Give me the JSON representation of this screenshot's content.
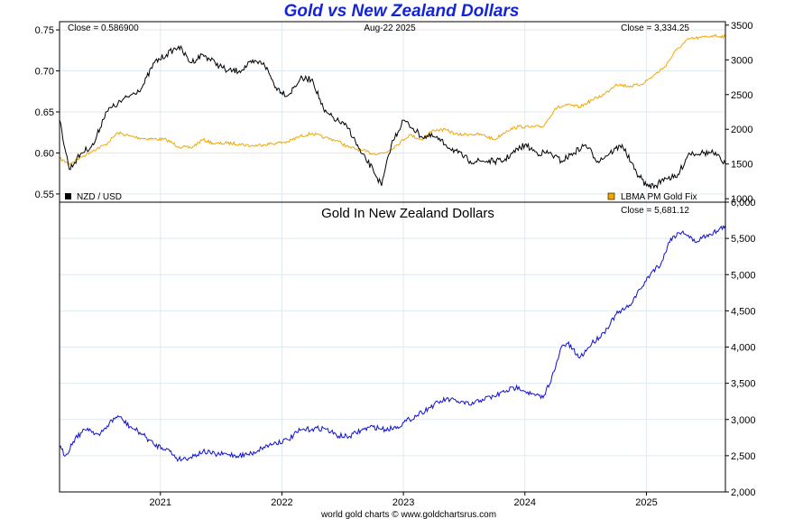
{
  "title": "Gold vs New Zealand Dollars",
  "footer": "world gold charts © www.goldchartsrus.com",
  "colors": {
    "nzd": "#000000",
    "gold_fix": "#f0a800",
    "gold_nzd": "#1010d0",
    "grid": "#dfe9ef"
  },
  "chart_data": [
    {
      "type": "line",
      "panel": "top",
      "date_label": "Aug-22  2025",
      "left_close": "Close = 0.586900",
      "right_close": "Close = 3,334.25",
      "x_ticks": [
        "2021",
        "2022",
        "2023",
        "2024",
        "2025"
      ],
      "x_range": [
        2020.17,
        2025.65
      ],
      "y_left": {
        "ticks": [
          "0.55",
          "0.60",
          "0.65",
          "0.70",
          "0.75"
        ],
        "range": [
          0.54,
          0.76
        ]
      },
      "y_right": {
        "ticks": [
          "1000",
          "1500",
          "2000",
          "2500",
          "3000",
          "3500"
        ],
        "range": [
          950,
          3550
        ]
      },
      "grid": true,
      "series": [
        {
          "name": "NZD / USD",
          "axis": "left",
          "legend": "bottom-left",
          "x": [
            2020.17,
            2020.25,
            2020.35,
            2020.45,
            2020.55,
            2020.65,
            2020.75,
            2020.85,
            2020.95,
            2021.05,
            2021.15,
            2021.25,
            2021.35,
            2021.45,
            2021.55,
            2021.65,
            2021.75,
            2021.85,
            2021.95,
            2022.05,
            2022.15,
            2022.25,
            2022.35,
            2022.45,
            2022.55,
            2022.65,
            2022.75,
            2022.82,
            2022.9,
            2023.0,
            2023.08,
            2023.15,
            2023.25,
            2023.35,
            2023.45,
            2023.55,
            2023.65,
            2023.75,
            2023.82,
            2023.9,
            2024.0,
            2024.1,
            2024.2,
            2024.3,
            2024.4,
            2024.5,
            2024.6,
            2024.7,
            2024.8,
            2024.9,
            2025.0,
            2025.08,
            2025.15,
            2025.25,
            2025.35,
            2025.45,
            2025.55,
            2025.65
          ],
          "y": [
            0.64,
            0.58,
            0.6,
            0.61,
            0.65,
            0.66,
            0.67,
            0.68,
            0.71,
            0.72,
            0.73,
            0.71,
            0.72,
            0.71,
            0.7,
            0.7,
            0.71,
            0.71,
            0.68,
            0.67,
            0.69,
            0.69,
            0.65,
            0.64,
            0.63,
            0.6,
            0.58,
            0.56,
            0.61,
            0.64,
            0.63,
            0.62,
            0.62,
            0.61,
            0.6,
            0.59,
            0.59,
            0.59,
            0.59,
            0.6,
            0.61,
            0.6,
            0.6,
            0.59,
            0.6,
            0.61,
            0.59,
            0.6,
            0.61,
            0.58,
            0.56,
            0.56,
            0.57,
            0.57,
            0.6,
            0.6,
            0.6,
            0.587
          ]
        },
        {
          "name": "LBMA PM Gold Fix",
          "axis": "right",
          "legend": "bottom-right",
          "x": [
            2020.17,
            2020.25,
            2020.35,
            2020.45,
            2020.55,
            2020.65,
            2020.75,
            2020.85,
            2020.95,
            2021.05,
            2021.15,
            2021.25,
            2021.35,
            2021.45,
            2021.55,
            2021.65,
            2021.75,
            2021.85,
            2021.95,
            2022.05,
            2022.15,
            2022.25,
            2022.35,
            2022.45,
            2022.55,
            2022.65,
            2022.75,
            2022.85,
            2022.95,
            2023.05,
            2023.15,
            2023.25,
            2023.35,
            2023.45,
            2023.55,
            2023.65,
            2023.75,
            2023.85,
            2023.95,
            2024.05,
            2024.15,
            2024.25,
            2024.35,
            2024.45,
            2024.55,
            2024.65,
            2024.75,
            2024.85,
            2024.95,
            2025.05,
            2025.15,
            2025.25,
            2025.35,
            2025.45,
            2025.55,
            2025.65
          ],
          "y": [
            1580,
            1500,
            1600,
            1700,
            1780,
            1950,
            1900,
            1870,
            1860,
            1850,
            1750,
            1730,
            1850,
            1790,
            1800,
            1790,
            1760,
            1780,
            1800,
            1820,
            1900,
            1940,
            1880,
            1840,
            1740,
            1700,
            1650,
            1660,
            1780,
            1920,
            1850,
            1990,
            1990,
            1920,
            1930,
            1920,
            1850,
            1980,
            2040,
            2030,
            2040,
            2300,
            2350,
            2320,
            2420,
            2500,
            2650,
            2620,
            2640,
            2760,
            2900,
            3150,
            3300,
            3320,
            3350,
            3334
          ]
        }
      ]
    },
    {
      "type": "line",
      "panel": "bottom",
      "title": "Gold In New Zealand Dollars",
      "right_close": "Close = 5,681.12",
      "x_ticks": [
        "2021",
        "2022",
        "2023",
        "2024",
        "2025"
      ],
      "x_range": [
        2020.17,
        2025.65
      ],
      "y_right": {
        "ticks": [
          "2,000",
          "2,500",
          "3,000",
          "3,500",
          "4,000",
          "4,500",
          "5,000",
          "5,500",
          "6,000"
        ],
        "range": [
          2000,
          6000
        ]
      },
      "grid": true,
      "series": [
        {
          "name": "Gold In New Zealand Dollars",
          "axis": "right",
          "x": [
            2020.17,
            2020.22,
            2020.3,
            2020.4,
            2020.5,
            2020.58,
            2020.65,
            2020.75,
            2020.85,
            2020.95,
            2021.05,
            2021.15,
            2021.25,
            2021.35,
            2021.45,
            2021.55,
            2021.65,
            2021.75,
            2021.85,
            2021.95,
            2022.05,
            2022.15,
            2022.25,
            2022.35,
            2022.45,
            2022.55,
            2022.65,
            2022.75,
            2022.85,
            2022.95,
            2023.05,
            2023.15,
            2023.25,
            2023.35,
            2023.45,
            2023.55,
            2023.65,
            2023.75,
            2023.85,
            2023.95,
            2024.05,
            2024.15,
            2024.25,
            2024.3,
            2024.35,
            2024.45,
            2024.55,
            2024.65,
            2024.75,
            2024.85,
            2024.95,
            2025.05,
            2025.12,
            2025.2,
            2025.3,
            2025.4,
            2025.5,
            2025.58,
            2025.65
          ],
          "y": [
            2620,
            2500,
            2750,
            2880,
            2780,
            2950,
            3050,
            2900,
            2800,
            2650,
            2600,
            2450,
            2480,
            2560,
            2520,
            2520,
            2500,
            2530,
            2620,
            2680,
            2720,
            2850,
            2870,
            2880,
            2780,
            2760,
            2850,
            2900,
            2860,
            2900,
            3000,
            3100,
            3200,
            3280,
            3250,
            3200,
            3280,
            3320,
            3400,
            3450,
            3350,
            3300,
            3700,
            4000,
            4050,
            3850,
            4050,
            4200,
            4450,
            4550,
            4800,
            5050,
            5150,
            5500,
            5600,
            5450,
            5550,
            5600,
            5681
          ]
        }
      ]
    }
  ]
}
